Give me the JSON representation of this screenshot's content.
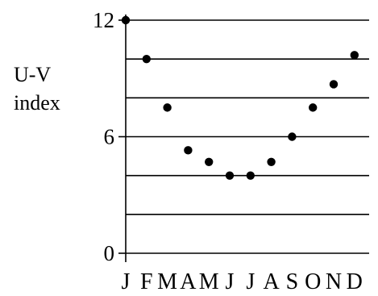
{
  "chart_data": {
    "type": "scatter",
    "title": "",
    "xlabel": "",
    "ylabel_lines": [
      "U-V",
      "index"
    ],
    "categories": [
      "J",
      "F",
      "M",
      "A",
      "M",
      "J",
      "J",
      "A",
      "S",
      "O",
      "N",
      "D"
    ],
    "values": [
      12,
      10,
      7.5,
      5.3,
      4.7,
      4,
      4,
      4.7,
      6,
      7.5,
      8.7,
      10.2
    ],
    "ylim": [
      0,
      12
    ],
    "yticks": [
      {
        "value": 0,
        "label": "0"
      },
      {
        "value": 6,
        "label": "6"
      },
      {
        "value": 12,
        "label": "12"
      }
    ],
    "gridlines": [
      2,
      4,
      6,
      8,
      10,
      12
    ],
    "grid": true,
    "legend": "none",
    "colors": {
      "marker": "#000000",
      "grid": "#000000",
      "axis": "#000000"
    }
  }
}
